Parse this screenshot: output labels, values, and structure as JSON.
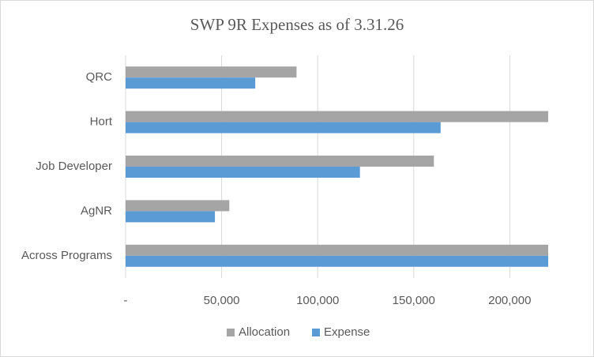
{
  "chart_data": {
    "type": "bar",
    "orientation": "horizontal",
    "title": "SWP 9R Expenses as of  3.31.26",
    "categories": [
      "QRC",
      "Hort",
      "Job Developer",
      "AgNR",
      "Across Programs"
    ],
    "series": [
      {
        "name": "Allocation",
        "color": "#a5a5a5",
        "values": [
          89000,
          220000,
          160500,
          54000,
          220000
        ]
      },
      {
        "name": "Expense",
        "color": "#5b9bd5",
        "values": [
          67500,
          164000,
          122000,
          46500,
          220000
        ]
      }
    ],
    "xlim": [
      0,
      220000
    ],
    "xticks": [
      {
        "value": 0,
        "label": "-"
      },
      {
        "value": 50000,
        "label": "50,000"
      },
      {
        "value": 100000,
        "label": "100,000"
      },
      {
        "value": 150000,
        "label": "150,000"
      },
      {
        "value": 200000,
        "label": "200,000"
      }
    ],
    "grid": true,
    "legend": "bottom"
  }
}
